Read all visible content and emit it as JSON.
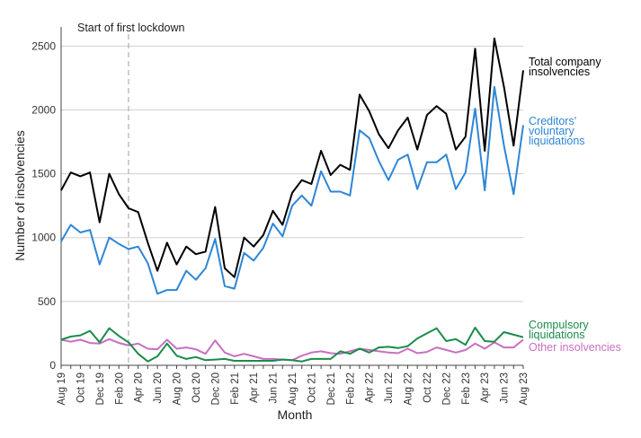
{
  "chart_data": {
    "type": "line",
    "ylabel": "Number of insolvencies",
    "xlabel": "Month",
    "ylim": [
      0,
      2650
    ],
    "yticks": [
      0,
      500,
      1000,
      1500,
      2000,
      2500
    ],
    "grid": "horizontal",
    "annotation": {
      "text": "Start of first lockdown",
      "at_month": "Mar 20"
    },
    "tick_labels": [
      "Aug 19",
      "Oct 19",
      "Dec 19",
      "Feb 20",
      "Apr 20",
      "Jun 20",
      "Aug 20",
      "Oct 20",
      "Dec 20",
      "Feb 21",
      "Apr 21",
      "Jun 21",
      "Aug 21",
      "Oct 21",
      "Dec 21",
      "Feb 22",
      "Apr 22",
      "Jun 22",
      "Aug 22",
      "Oct 22",
      "Dec 22",
      "Feb 23",
      "Apr 23",
      "Jun 23",
      "Aug 23"
    ],
    "months": [
      "Aug 19",
      "Sep 19",
      "Oct 19",
      "Nov 19",
      "Dec 19",
      "Jan 20",
      "Feb 20",
      "Mar 20",
      "Apr 20",
      "May 20",
      "Jun 20",
      "Jul 20",
      "Aug 20",
      "Sep 20",
      "Oct 20",
      "Nov 20",
      "Dec 20",
      "Jan 21",
      "Feb 21",
      "Mar 21",
      "Apr 21",
      "May 21",
      "Jun 21",
      "Jul 21",
      "Aug 21",
      "Sep 21",
      "Oct 21",
      "Nov 21",
      "Dec 21",
      "Jan 22",
      "Feb 22",
      "Mar 22",
      "Apr 22",
      "May 22",
      "Jun 22",
      "Jul 22",
      "Aug 22",
      "Sep 22",
      "Oct 22",
      "Nov 22",
      "Dec 22",
      "Jan 23",
      "Feb 23",
      "Mar 23",
      "Apr 23",
      "May 23",
      "Jun 23",
      "Jul 23",
      "Aug 23"
    ],
    "series": [
      {
        "name": "Total company insolvencies",
        "label_lines": [
          "Total company",
          "insolvencies"
        ],
        "color": "#000000",
        "values": [
          1370,
          1510,
          1480,
          1510,
          1120,
          1500,
          1340,
          1230,
          1200,
          960,
          740,
          960,
          790,
          930,
          870,
          890,
          1240,
          760,
          690,
          1000,
          930,
          1020,
          1210,
          1100,
          1350,
          1450,
          1420,
          1680,
          1490,
          1570,
          1530,
          2120,
          1990,
          1810,
          1700,
          1840,
          1940,
          1690,
          1960,
          2030,
          1970,
          1690,
          1790,
          2480,
          1680,
          2560,
          2180,
          1720,
          2310
        ]
      },
      {
        "name": "Creditors' voluntary liquidations",
        "label_lines": [
          "Creditors'",
          "voluntary",
          "liquidations"
        ],
        "color": "#2e86d6",
        "values": [
          970,
          1100,
          1040,
          1060,
          790,
          1000,
          950,
          910,
          930,
          800,
          560,
          590,
          590,
          740,
          670,
          760,
          990,
          620,
          600,
          880,
          820,
          920,
          1110,
          1010,
          1250,
          1330,
          1250,
          1520,
          1360,
          1360,
          1330,
          1840,
          1780,
          1600,
          1450,
          1610,
          1650,
          1380,
          1590,
          1590,
          1650,
          1380,
          1510,
          2010,
          1370,
          2180,
          1720,
          1340,
          1880
        ]
      },
      {
        "name": "Compulsory liquidations",
        "label_lines": [
          "Compulsory",
          "liquidations"
        ],
        "color": "#1b8b4a",
        "values": [
          200,
          225,
          235,
          270,
          180,
          290,
          230,
          180,
          90,
          30,
          70,
          170,
          75,
          50,
          65,
          40,
          45,
          50,
          35,
          35,
          35,
          35,
          35,
          45,
          40,
          30,
          50,
          50,
          50,
          110,
          90,
          130,
          100,
          140,
          145,
          135,
          150,
          210,
          250,
          290,
          190,
          205,
          160,
          295,
          190,
          185,
          260,
          240,
          220
        ]
      },
      {
        "name": "Other insolvencies",
        "label_lines": [
          "Other insolvencies"
        ],
        "color": "#c86fc0",
        "values": [
          200,
          185,
          200,
          175,
          170,
          205,
          175,
          155,
          170,
          130,
          125,
          200,
          130,
          140,
          125,
          90,
          195,
          100,
          70,
          90,
          70,
          50,
          50,
          45,
          40,
          75,
          100,
          110,
          95,
          90,
          110,
          130,
          120,
          110,
          100,
          95,
          130,
          95,
          105,
          140,
          120,
          100,
          120,
          170,
          130,
          180,
          140,
          140,
          200
        ]
      }
    ]
  }
}
